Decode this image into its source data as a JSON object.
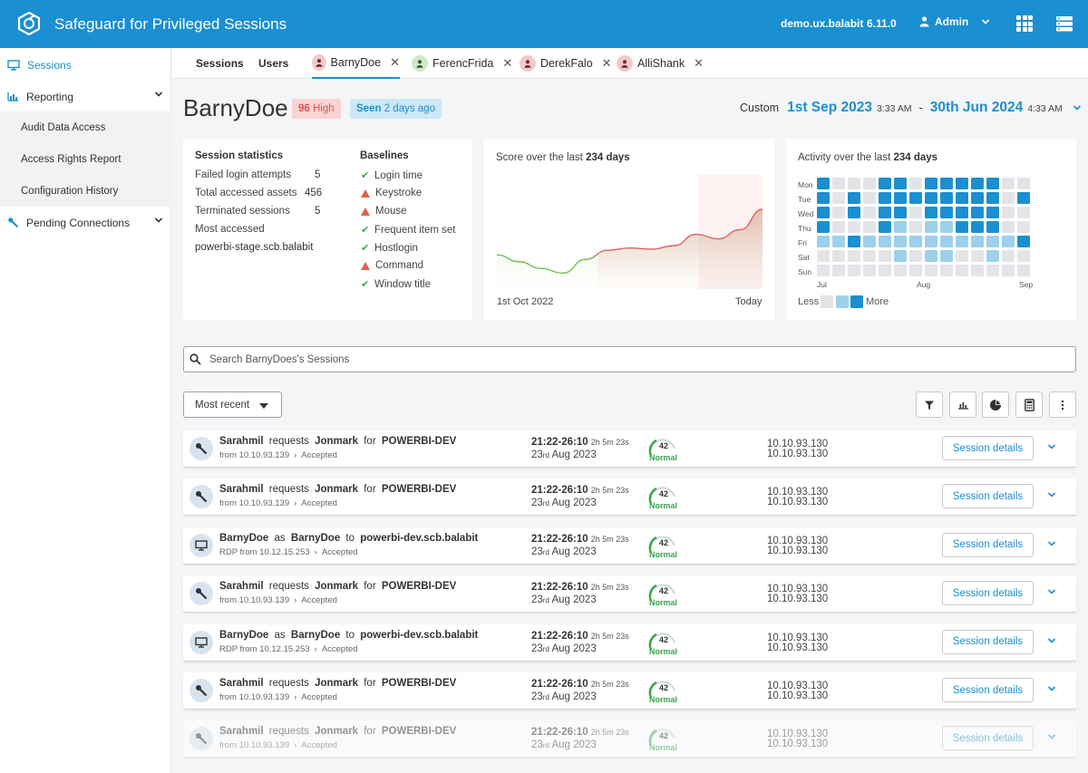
{
  "app": {
    "title": "Safeguard for Privileged Sessions",
    "host": "demo.ux.balabit",
    "version": "6.11.0",
    "user": "Admin"
  },
  "sidebar": {
    "items": [
      {
        "label": "Sessions",
        "icon": "monitor-icon",
        "active": true
      },
      {
        "label": "Reporting",
        "icon": "bar-chart-icon",
        "expanded": true
      },
      {
        "label": "Audit Data Access"
      },
      {
        "label": "Access Rights Report"
      },
      {
        "label": "Configuration History"
      },
      {
        "label": "Pending Connections",
        "icon": "wrench-icon"
      }
    ]
  },
  "tabs": [
    {
      "label": "Sessions"
    },
    {
      "label": "Users"
    },
    {
      "label": "BarnyDoe",
      "color": "#f3c9c7",
      "active": true
    },
    {
      "label": "FerencFrida",
      "color": "#cfe8c9"
    },
    {
      "label": "DerekFalo",
      "color": "#f3c9c7"
    },
    {
      "label": "AlliShank",
      "color": "#f3c9c7"
    }
  ],
  "header": {
    "name": "BarnyDoe",
    "risk_score": "96",
    "risk_label": "High",
    "seen_prefix": "Seen",
    "seen_value": "2 days ago",
    "range_label": "Custom",
    "start_date": "1st Sep 2023",
    "start_time": "3:33 AM",
    "sep": "-",
    "end_date": "30th Jun 2024",
    "end_time": "4:33 AM"
  },
  "stats": {
    "title": "Session statistics",
    "rows": [
      {
        "label": "Failed login attempts",
        "value": "5"
      },
      {
        "label": "Total accessed assets",
        "value": "456"
      },
      {
        "label": "Terminated sessions",
        "value": "5"
      }
    ],
    "most_accessed_label": "Most accessed",
    "most_accessed_value": "powerbi-stage.scb.balabit"
  },
  "baselines": {
    "title": "Baselines",
    "items": [
      {
        "label": "Login time",
        "status": "ok"
      },
      {
        "label": "Keystroke",
        "status": "warn"
      },
      {
        "label": "Mouse",
        "status": "warn"
      },
      {
        "label": "Frequent item set",
        "status": "ok"
      },
      {
        "label": "Hostlogin",
        "status": "ok"
      },
      {
        "label": "Command",
        "status": "warn"
      },
      {
        "label": "Window title",
        "status": "ok"
      }
    ]
  },
  "score_chart": {
    "title_prefix": "Score over the last",
    "title_days": "234 days",
    "start_label": "1st Oct 2022",
    "end_label": "Today"
  },
  "chart_data": {
    "type": "area",
    "x": [
      0,
      1,
      2,
      3,
      4,
      5,
      6,
      7,
      8,
      9,
      10,
      11,
      12
    ],
    "values": [
      30,
      24,
      18,
      14,
      26,
      34,
      36,
      35,
      38,
      48,
      44,
      52,
      70
    ],
    "ylim": [
      0,
      100
    ],
    "grid": false
  },
  "activity": {
    "title_prefix": "Activity over the last",
    "title_days": "234 days",
    "days": [
      "Mon",
      "Tue",
      "Wed",
      "Thu",
      "Fri",
      "Sat",
      "Sun"
    ],
    "months": [
      "Jul",
      "Aug",
      "Sep"
    ],
    "legend_less": "Less",
    "legend_more": "More",
    "colors": [
      "#e2e4e7",
      "#9dd0ea",
      "#1a8fd1"
    ],
    "levels": [
      [
        2,
        0,
        0,
        0,
        2,
        2,
        0,
        2,
        2,
        2,
        2,
        2,
        0,
        0
      ],
      [
        2,
        0,
        2,
        0,
        2,
        2,
        2,
        2,
        2,
        2,
        2,
        2,
        0,
        2
      ],
      [
        2,
        0,
        2,
        0,
        2,
        2,
        0,
        2,
        2,
        2,
        2,
        2,
        0,
        0
      ],
      [
        2,
        0,
        0,
        0,
        2,
        1,
        0,
        1,
        1,
        2,
        2,
        2,
        0,
        0
      ],
      [
        1,
        1,
        2,
        1,
        1,
        1,
        1,
        1,
        1,
        1,
        1,
        1,
        1,
        2
      ],
      [
        0,
        0,
        0,
        0,
        0,
        1,
        0,
        1,
        1,
        0,
        0,
        1,
        0,
        0
      ],
      [
        0,
        0,
        0,
        0,
        0,
        0,
        0,
        0,
        0,
        0,
        0,
        0,
        0,
        0
      ]
    ]
  },
  "search": {
    "placeholder": "Search BarnyDoes's Sessions"
  },
  "sort": {
    "label": "Most recent"
  },
  "sessions": [
    {
      "type": "request",
      "who": "Sarahmil",
      "verb": "requests",
      "target": "Jonmark",
      "prep": "for",
      "dest": "POWERBI-DEV",
      "from": "from 10.10.93.139",
      "status": "Accepted",
      "time": "21:22-26:10",
      "dur": "2h 5m 23s",
      "day": "23",
      "ord": "rd",
      "date_rest": "Aug 2023",
      "score": "42",
      "score_label": "Normal",
      "ip1": "10.10.93.130",
      "ip2": "10.10.93.130",
      "btn": "Session details"
    },
    {
      "type": "request",
      "who": "Sarahmil",
      "verb": "requests",
      "target": "Jonmark",
      "prep": "for",
      "dest": "POWERBI-DEV",
      "from": "from 10.10.93.139",
      "status": "Accepted",
      "time": "21:22-26:10",
      "dur": "2h 5m 23s",
      "day": "23",
      "ord": "rd",
      "date_rest": "Aug 2023",
      "score": "42",
      "score_label": "Normal",
      "ip1": "10.10.93.130",
      "ip2": "10.10.93.130",
      "btn": "Session details"
    },
    {
      "type": "rdp",
      "who": "BarnyDoe",
      "verb": "as",
      "target": "BarnyDoe",
      "prep": "to",
      "dest": "powerbi-dev.scb.balabit",
      "from": "RDP from 10.12.15.253",
      "status": "Accepted",
      "time": "21:22-26:10",
      "dur": "2h 5m 23s",
      "day": "23",
      "ord": "rd",
      "date_rest": "Aug 2023",
      "score": "42",
      "score_label": "Normal",
      "ip1": "10.10.93.130",
      "ip2": "10.10.93.130",
      "btn": "Session details"
    },
    {
      "type": "request",
      "who": "Sarahmil",
      "verb": "requests",
      "target": "Jonmark",
      "prep": "for",
      "dest": "POWERBI-DEV",
      "from": "from 10.10.93.139",
      "status": "Accepted",
      "time": "21:22-26:10",
      "dur": "2h 5m 23s",
      "day": "23",
      "ord": "rd",
      "date_rest": "Aug 2023",
      "score": "42",
      "score_label": "Normal",
      "ip1": "10.10.93.130",
      "ip2": "10.10.93.130",
      "btn": "Session details"
    },
    {
      "type": "rdp",
      "who": "BarnyDoe",
      "verb": "as",
      "target": "BarnyDoe",
      "prep": "to",
      "dest": "powerbi-dev.scb.balabit",
      "from": "RDP from 10.12.15.253",
      "status": "Accepted",
      "time": "21:22-26:10",
      "dur": "2h 5m 23s",
      "day": "23",
      "ord": "rd",
      "date_rest": "Aug 2023",
      "score": "42",
      "score_label": "Normal",
      "ip1": "10.10.93.130",
      "ip2": "10.10.93.130",
      "btn": "Session details"
    },
    {
      "type": "request",
      "who": "Sarahmil",
      "verb": "requests",
      "target": "Jonmark",
      "prep": "for",
      "dest": "POWERBI-DEV",
      "from": "from 10.10.93.139",
      "status": "Accepted",
      "time": "21:22-26:10",
      "dur": "2h 5m 23s",
      "day": "23",
      "ord": "rd",
      "date_rest": "Aug 2023",
      "score": "42",
      "score_label": "Normal",
      "ip1": "10.10.93.130",
      "ip2": "10.10.93.130",
      "btn": "Session details"
    },
    {
      "type": "request",
      "who": "Sarahmil",
      "verb": "requests",
      "target": "Jonmark",
      "prep": "for",
      "dest": "POWERBI-DEV",
      "from": "from 10.10.93.139",
      "status": "Accepted",
      "time": "21:22-26:10",
      "dur": "2h 5m 23s",
      "day": "23",
      "ord": "rd",
      "date_rest": "Aug 2023",
      "score": "42",
      "score_label": "Normal",
      "ip1": "10.10.93.130",
      "ip2": "10.10.93.130",
      "btn": "Session details",
      "faded": true
    }
  ]
}
